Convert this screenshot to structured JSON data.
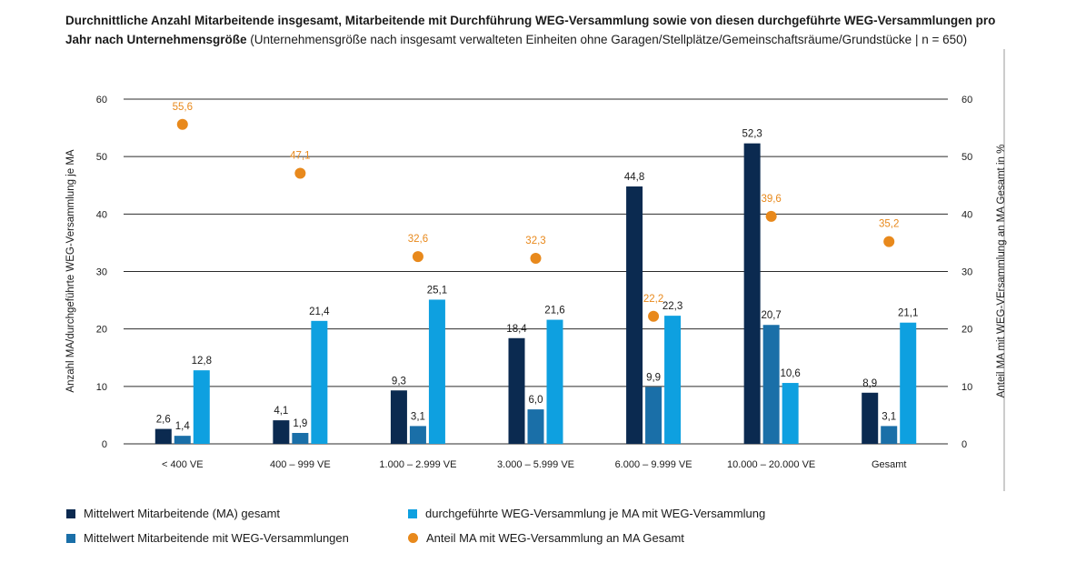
{
  "title": {
    "bold": "Durchnittliche Anzahl Mitarbeitende insgesamt, Mitarbeitende mit Durchführung WEG-Versammlung sowie von diesen durchgeführte WEG-Versammlungen pro Jahr nach Unternehmensgröße",
    "normal": " (Unternehmensgröße nach insgesamt verwalteten Einheiten ohne Garagen/Stellplätze/Gemeinschaftsräume/Grundstücke | n = 650)"
  },
  "colors": {
    "ma_gesamt": "#0b2a50",
    "ma_weg": "#1a6fa8",
    "weg_je_ma": "#0ea0e0",
    "anteil": "#e8891c",
    "grid": "#2b2b2b"
  },
  "legend": [
    {
      "label": "Mittelwert Mitarbeitende (MA) gesamt",
      "color": "#0b2a50",
      "shape": "square"
    },
    {
      "label": "durchgeführte WEG-Versammlung je MA mit WEG-Versammlung",
      "color": "#0ea0e0",
      "shape": "square"
    },
    {
      "label": "Mittelwert Mitarbeitende mit WEG-Versammlungen",
      "color": "#1a6fa8",
      "shape": "square"
    },
    {
      "label": "Anteil MA mit WEG-Versammlung an MA Gesamt",
      "color": "#e8891c",
      "shape": "circle"
    }
  ],
  "chart_data": {
    "type": "bar",
    "categories": [
      "< 400 VE",
      "400 – 999 VE",
      "1.000 – 2.999 VE",
      "3.000 – 5.999 VE",
      "6.000 – 9.999 VE",
      "10.000 – 20.000 VE",
      "Gesamt"
    ],
    "series": [
      {
        "name": "Mittelwert Mitarbeitende (MA) gesamt",
        "values": [
          2.6,
          4.1,
          9.3,
          18.4,
          44.8,
          52.3,
          8.9
        ],
        "labels": [
          "2,6",
          "4,1",
          "9,3",
          "18,4",
          "44,8",
          "52,3",
          "8,9"
        ],
        "axis": "left",
        "color": "#0b2a50"
      },
      {
        "name": "Mittelwert Mitarbeitende mit WEG-Versammlungen",
        "values": [
          1.4,
          1.9,
          3.1,
          6.0,
          9.9,
          20.7,
          3.1
        ],
        "labels": [
          "1,4",
          "1,9",
          "3,1",
          "6,0",
          "9,9",
          "20,7",
          "3,1"
        ],
        "axis": "left",
        "color": "#1a6fa8"
      },
      {
        "name": "durchgeführte WEG-Versammlung je MA mit WEG-Versammlung",
        "values": [
          12.8,
          21.4,
          25.1,
          21.6,
          22.3,
          10.6,
          21.1
        ],
        "labels": [
          "12,8",
          "21,4",
          "25,1",
          "21,6",
          "22,3",
          "10,6",
          "21,1"
        ],
        "axis": "left",
        "color": "#0ea0e0"
      },
      {
        "name": "Anteil MA mit WEG-Versammlung an MA Gesamt",
        "type": "scatter",
        "values": [
          55.6,
          47.1,
          32.6,
          32.3,
          22.2,
          39.6,
          35.2
        ],
        "labels": [
          "55,6",
          "47,1",
          "32,6",
          "32,3",
          "22,2",
          "39,6",
          "35,2"
        ],
        "axis": "right",
        "color": "#e8891c"
      }
    ],
    "ylabel": "Anzahl MA/durchgeführte WEG-Versammlung je MA",
    "ylabel_right": "Anteil MA mit WEG-VErsammlung an MA Gesamt in %",
    "ylim": [
      0,
      60
    ],
    "ylim_right": [
      0,
      60
    ],
    "yticks": [
      0,
      10,
      20,
      30,
      40,
      50,
      60
    ],
    "grid": true
  }
}
